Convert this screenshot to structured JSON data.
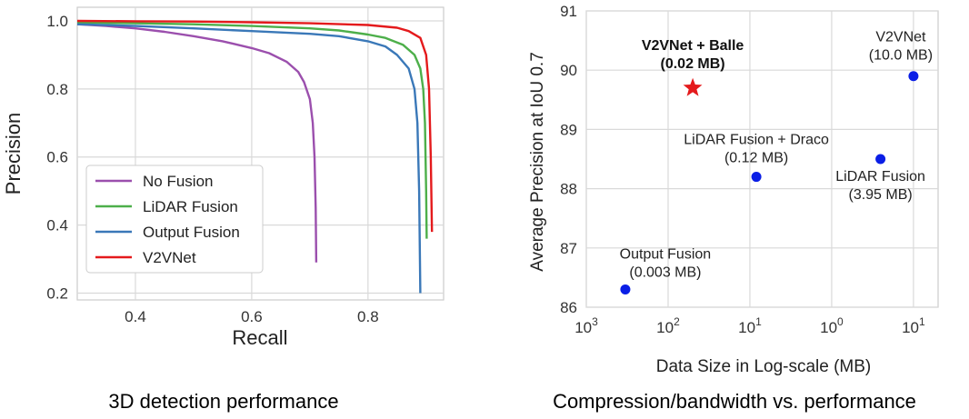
{
  "chart_data": [
    {
      "type": "line",
      "caption": "3D detection performance",
      "xlabel": "Recall",
      "ylabel": "Precision",
      "xlim": [
        0.3,
        0.93
      ],
      "ylim": [
        0.18,
        1.04
      ],
      "xticks": [
        0.4,
        0.6,
        0.8
      ],
      "yticks": [
        0.2,
        0.4,
        0.6,
        0.8,
        1.0
      ],
      "xtick_labels": [
        "0.4",
        "0.6",
        "0.8"
      ],
      "ytick_labels": [
        "0.2",
        "0.4",
        "0.6",
        "0.8",
        "1.0"
      ],
      "grid": true,
      "legend_position": "lower-left",
      "series": [
        {
          "name": "No Fusion",
          "color": "#9b4fad",
          "x": [
            0.3,
            0.35,
            0.4,
            0.45,
            0.5,
            0.55,
            0.6,
            0.63,
            0.66,
            0.68,
            0.69,
            0.7,
            0.705,
            0.708,
            0.71,
            0.711
          ],
          "y": [
            0.99,
            0.985,
            0.978,
            0.968,
            0.955,
            0.94,
            0.92,
            0.905,
            0.88,
            0.85,
            0.82,
            0.77,
            0.7,
            0.6,
            0.45,
            0.29
          ]
        },
        {
          "name": "LiDAR Fusion",
          "color": "#4daf4a",
          "x": [
            0.3,
            0.4,
            0.5,
            0.6,
            0.7,
            0.75,
            0.8,
            0.83,
            0.86,
            0.88,
            0.89,
            0.895,
            0.898,
            0.9,
            0.901
          ],
          "y": [
            0.995,
            0.993,
            0.99,
            0.985,
            0.978,
            0.972,
            0.96,
            0.95,
            0.93,
            0.9,
            0.86,
            0.8,
            0.7,
            0.5,
            0.36
          ]
        },
        {
          "name": "Output Fusion",
          "color": "#3a78b8",
          "x": [
            0.3,
            0.4,
            0.5,
            0.6,
            0.7,
            0.75,
            0.8,
            0.83,
            0.85,
            0.87,
            0.88,
            0.885,
            0.888,
            0.89
          ],
          "y": [
            0.99,
            0.985,
            0.978,
            0.97,
            0.962,
            0.955,
            0.94,
            0.925,
            0.9,
            0.86,
            0.8,
            0.7,
            0.5,
            0.2
          ]
        },
        {
          "name": "V2VNet",
          "color": "#e41a1c",
          "x": [
            0.3,
            0.4,
            0.5,
            0.6,
            0.7,
            0.8,
            0.85,
            0.87,
            0.89,
            0.9,
            0.905,
            0.908,
            0.91
          ],
          "y": [
            1.0,
            0.999,
            0.998,
            0.996,
            0.993,
            0.988,
            0.98,
            0.97,
            0.95,
            0.9,
            0.8,
            0.6,
            0.38
          ]
        }
      ]
    },
    {
      "type": "scatter",
      "caption": "Compression/bandwidth vs. performance",
      "xlabel": "Data Size in Log-scale (MB)",
      "ylabel": "Average Precision at IoU 0.7",
      "x_scale": "log",
      "x_reversed": true,
      "xlim_mb": [
        0.001,
        20
      ],
      "ylim": [
        86,
        91
      ],
      "xticks_exponents": [
        -3,
        -2,
        -1,
        0,
        1
      ],
      "xtick_base": "10",
      "yticks": [
        86,
        87,
        88,
        89,
        90,
        91
      ],
      "ytick_labels": [
        "86",
        "87",
        "88",
        "89",
        "90",
        "91"
      ],
      "grid": true,
      "points": [
        {
          "label": "V2VNet + Balle",
          "size_label": "(0.02 MB)",
          "x_mb": 0.02,
          "y": 89.7,
          "marker": "star",
          "color": "#e41a1c",
          "bold": true
        },
        {
          "label": "V2VNet",
          "size_label": "(10.0 MB)",
          "x_mb": 10.0,
          "y": 89.9,
          "marker": "circle",
          "color": "#0a1ee6",
          "bold": false
        },
        {
          "label": "LiDAR Fusion + Draco",
          "size_label": "(0.12 MB)",
          "x_mb": 0.12,
          "y": 88.2,
          "marker": "circle",
          "color": "#0a1ee6",
          "bold": false
        },
        {
          "label": "LiDAR Fusion",
          "size_label": "(3.95 MB)",
          "x_mb": 3.95,
          "y": 88.5,
          "marker": "circle",
          "color": "#0a1ee6",
          "bold": false
        },
        {
          "label": "Output Fusion",
          "size_label": "(0.003 MB)",
          "x_mb": 0.003,
          "y": 86.3,
          "marker": "circle",
          "color": "#0a1ee6",
          "bold": false
        }
      ]
    }
  ]
}
